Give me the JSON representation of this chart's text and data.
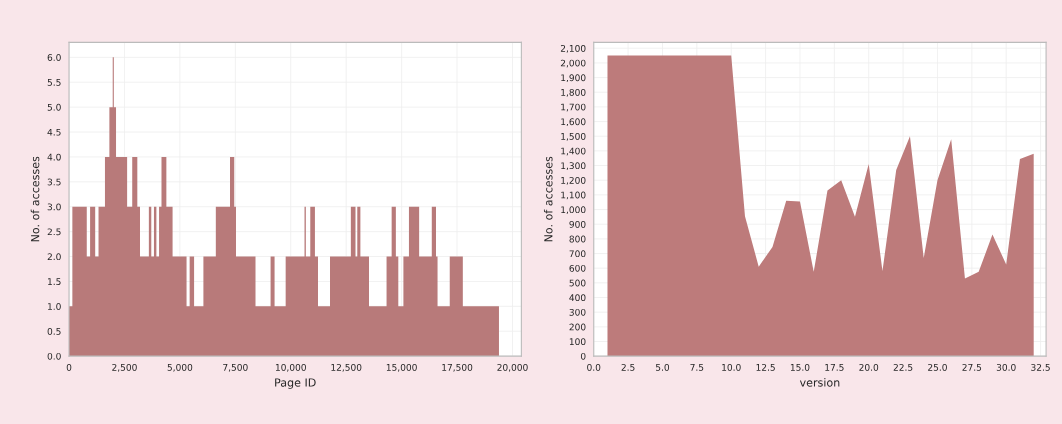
{
  "chart_data": [
    {
      "type": "histogram",
      "xlabel": "Page ID",
      "ylabel": "No. of accesses",
      "color": "#b87a7a",
      "grid": true,
      "bins": [
        0,
        150,
        800,
        950,
        1180,
        1330,
        1620,
        1820,
        1970,
        2020,
        2120,
        2620,
        2850,
        3080,
        3200,
        3600,
        3710,
        3830,
        3940,
        4060,
        4170,
        4390,
        4670,
        5300,
        5440,
        5640,
        6060,
        6620,
        7260,
        7450,
        7530,
        8410,
        9090,
        9270,
        9770,
        10620,
        10680,
        10880,
        11090,
        11230,
        11770,
        12710,
        12920,
        13000,
        13140,
        13530,
        14320,
        14550,
        14740,
        14850,
        15080,
        15330,
        15790,
        16360,
        16550,
        16620,
        17170,
        17760,
        19390
      ],
      "values": [
        1,
        3,
        2,
        3,
        2,
        3,
        4,
        5,
        6,
        5,
        4,
        3,
        4,
        3,
        2,
        3,
        2,
        3,
        2,
        3,
        4,
        3,
        2,
        1,
        2,
        1,
        2,
        3,
        4,
        3,
        2,
        1,
        2,
        1,
        2,
        3,
        2,
        3,
        2,
        1,
        2,
        3,
        2,
        3,
        2,
        1,
        2,
        3,
        2,
        1,
        2,
        3,
        2,
        3,
        2,
        1,
        2,
        1
      ],
      "xlim": [
        0,
        20400
      ],
      "ylim": [
        0,
        6.3
      ],
      "xticks": [
        0,
        {
          "value": 2500,
          "label": "2,500"
        },
        {
          "value": 5000,
          "label": "5,000"
        },
        {
          "value": 7500,
          "label": "7,500"
        },
        {
          "value": 10000,
          "label": "10,000"
        },
        {
          "value": 12500,
          "label": "12,500"
        },
        {
          "value": 15000,
          "label": "15,000"
        },
        {
          "value": 17500,
          "label": "17,500"
        },
        {
          "value": 20000,
          "label": "20,000"
        }
      ],
      "yticks": [
        {
          "value": 0,
          "label": "0.0"
        },
        0.5,
        {
          "value": 1,
          "label": "1.0"
        },
        1.5,
        {
          "value": 2,
          "label": "2.0"
        },
        2.5,
        {
          "value": 3,
          "label": "3.0"
        },
        3.5,
        {
          "value": 4,
          "label": "4.0"
        },
        4.5,
        {
          "value": 5,
          "label": "5.0"
        },
        5.5,
        {
          "value": 6,
          "label": "6.0"
        }
      ]
    },
    {
      "type": "area",
      "xlabel": "version",
      "ylabel": "No. of accesses",
      "color": "#bd7b7b",
      "grid": true,
      "x": [
        1,
        2,
        3,
        4,
        5,
        6,
        7,
        8,
        9,
        10,
        11,
        12,
        13,
        14,
        15,
        16,
        17,
        18,
        19,
        20,
        21,
        22,
        23,
        24,
        25,
        26,
        27,
        28,
        29,
        30,
        31,
        32
      ],
      "values": [
        2050,
        2050,
        2050,
        2050,
        2050,
        2050,
        2050,
        2050,
        2050,
        2050,
        955,
        610,
        745,
        1060,
        1055,
        575,
        1130,
        1200,
        950,
        1310,
        580,
        1270,
        1500,
        670,
        1200,
        1480,
        530,
        575,
        830,
        625,
        1345,
        1380
      ],
      "xlim": [
        0,
        32.9
      ],
      "ylim": [
        0,
        2140
      ],
      "xticks": [
        {
          "value": 0,
          "label": "0.0"
        },
        2.5,
        {
          "value": 5,
          "label": "5.0"
        },
        7.5,
        {
          "value": 10,
          "label": "10.0"
        },
        12.5,
        {
          "value": 15,
          "label": "15.0"
        },
        17.5,
        {
          "value": 20,
          "label": "20.0"
        },
        22.5,
        {
          "value": 25,
          "label": "25.0"
        },
        27.5,
        {
          "value": 30,
          "label": "30.0"
        },
        32.5
      ],
      "yticks": [
        0,
        100,
        200,
        300,
        400,
        500,
        600,
        700,
        800,
        900,
        {
          "value": 1000,
          "label": "1,000"
        },
        {
          "value": 1100,
          "label": "1,100"
        },
        {
          "value": 1200,
          "label": "1,200"
        },
        {
          "value": 1300,
          "label": "1,300"
        },
        {
          "value": 1400,
          "label": "1,400"
        },
        {
          "value": 1500,
          "label": "1,500"
        },
        {
          "value": 1600,
          "label": "1,600"
        },
        {
          "value": 1700,
          "label": "1,700"
        },
        {
          "value": 1800,
          "label": "1,800"
        },
        {
          "value": 1900,
          "label": "1,900"
        },
        {
          "value": 2000,
          "label": "2,000"
        },
        {
          "value": 2100,
          "label": "2,100"
        }
      ]
    }
  ]
}
